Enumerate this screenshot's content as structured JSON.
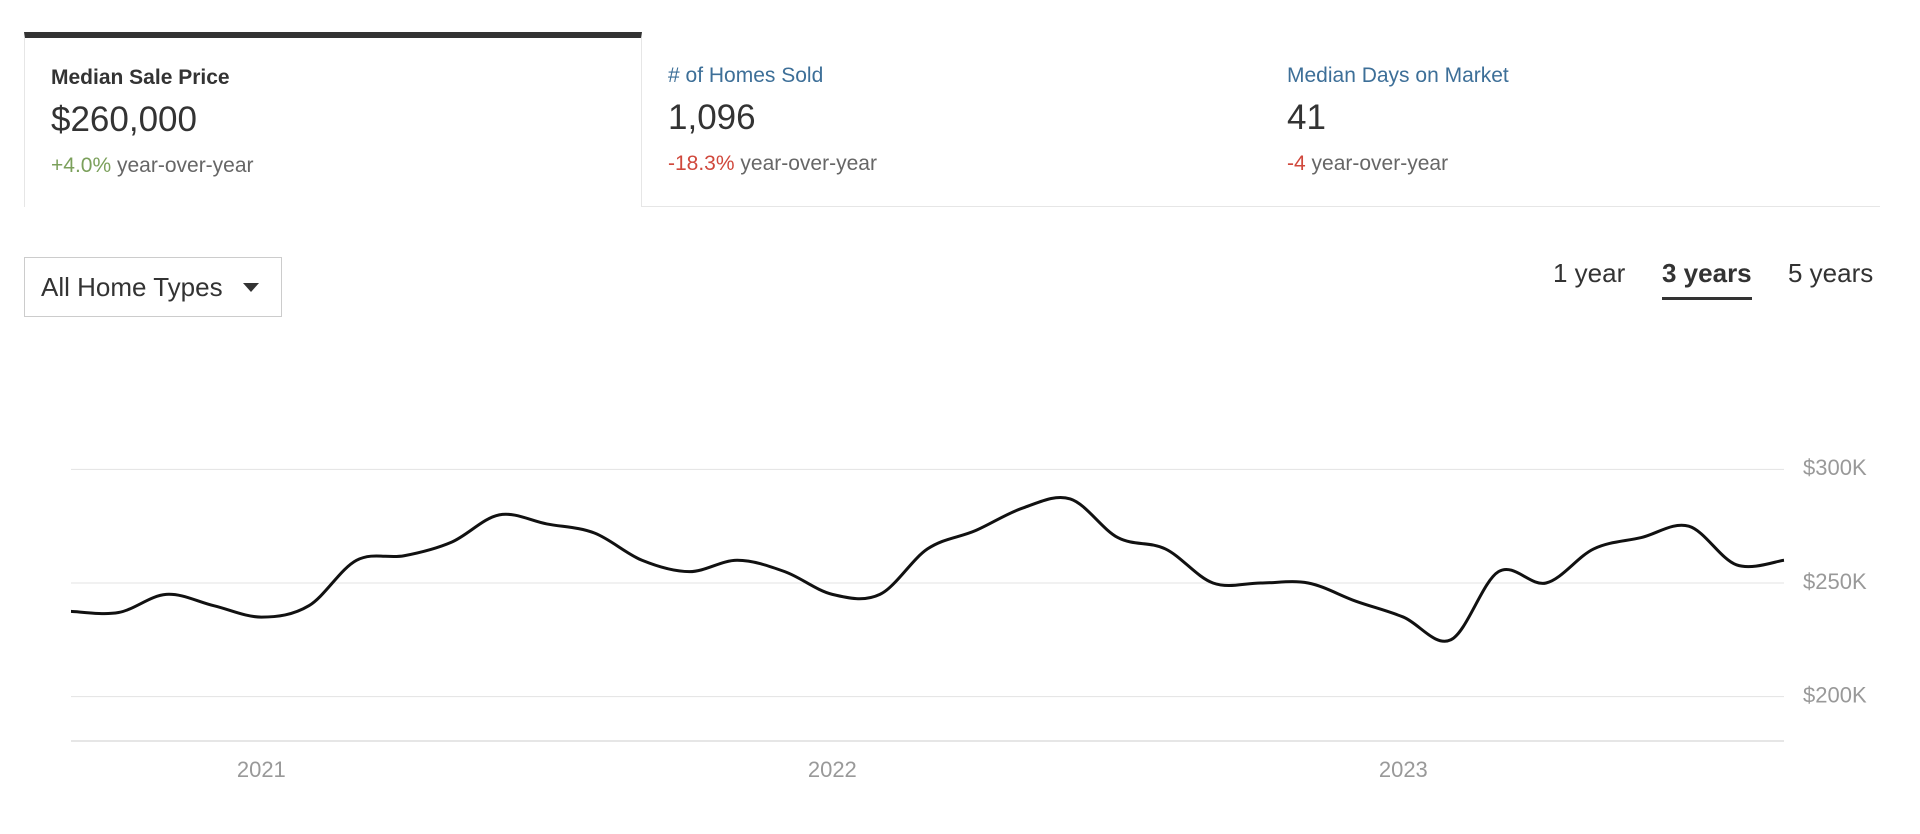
{
  "tabs": [
    {
      "title": "Median Sale Price",
      "value": "$260,000",
      "change": "+4.0%",
      "change_label": "year-over-year"
    },
    {
      "title": "# of Homes Sold",
      "value": "1,096",
      "change": "-18.3%",
      "change_label": "year-over-year"
    },
    {
      "title": "Median Days on Market",
      "value": "41",
      "change": "-4",
      "change_label": "year-over-year"
    }
  ],
  "filter": "All Home Types",
  "ranges": [
    "1 year",
    "3 years",
    "5 years"
  ],
  "chart_data": {
    "type": "line",
    "categories": [
      null,
      null,
      null,
      null,
      "2021",
      null,
      null,
      null,
      null,
      null,
      null,
      null,
      null,
      null,
      null,
      null,
      "2022",
      null,
      null,
      null,
      null,
      null,
      null,
      null,
      null,
      null,
      null,
      null,
      "2023",
      null,
      null,
      null,
      null,
      null,
      null,
      null,
      null
    ],
    "values": [
      237500,
      237000,
      245000,
      240000,
      235000,
      240000,
      260000,
      262000,
      268000,
      280000,
      276000,
      272000,
      260000,
      255000,
      260000,
      255000,
      245000,
      245000,
      265000,
      273000,
      283000,
      287000,
      270000,
      265000,
      250000,
      250000,
      250000,
      242000,
      235000,
      225000,
      255000,
      250000,
      265000,
      270000,
      275000,
      258000,
      260000
    ],
    "color": "#111111",
    "ylim": [
      180000,
      320000
    ],
    "yticks": [
      {
        "value": 200000,
        "label": "$200K"
      },
      {
        "value": 250000,
        "label": "$250K"
      },
      {
        "value": 300000,
        "label": "$300K"
      }
    ],
    "grid": true
  }
}
